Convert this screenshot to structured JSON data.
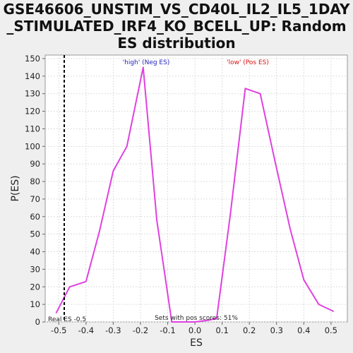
{
  "chart_data": {
    "type": "line",
    "title_lines": [
      "GSE46606_UNSTIM_VS_CD40L_IL2_IL5_1DAY",
      "_STIMULATED_IRF4_KO_BCELL_UP: Random",
      "ES distribution"
    ],
    "xlabel": "ES",
    "ylabel": "P(ES)",
    "xlim": [
      -0.55,
      0.56
    ],
    "ylim": [
      0,
      152
    ],
    "xticks": [
      -0.5,
      -0.4,
      -0.3,
      -0.2,
      -0.1,
      0.0,
      0.1,
      0.2,
      0.3,
      0.4,
      0.5
    ],
    "xtick_labels": [
      "-0.5",
      "-0.4",
      "-0.3",
      "-0.2",
      "-0.1",
      "0.0",
      "0.1",
      "0.2",
      "0.3",
      "0.4",
      "0.5"
    ],
    "yticks": [
      0,
      10,
      20,
      30,
      40,
      50,
      60,
      70,
      80,
      90,
      100,
      110,
      120,
      130,
      140,
      150
    ],
    "grid": true,
    "series": [
      {
        "color": "#e040e0",
        "x": [
          -0.51,
          -0.46,
          -0.4,
          -0.35,
          -0.3,
          -0.25,
          -0.19,
          -0.14,
          -0.085,
          -0.04,
          0.0,
          0.05,
          0.08,
          0.13,
          0.185,
          0.24,
          0.295,
          0.35,
          0.4,
          0.455,
          0.51
        ],
        "y": [
          5,
          20,
          23,
          52,
          86,
          100,
          145,
          58,
          0,
          0,
          0,
          1,
          2,
          61,
          133,
          130,
          91,
          53,
          24,
          10,
          6
        ]
      }
    ],
    "vline": {
      "x": -0.48,
      "style": "dashed",
      "color": "#000000"
    },
    "annotations": {
      "high_label": "'high' (Neg ES)",
      "high_color": "#2222bb",
      "low_label": "'low' (Pos ES)",
      "low_color": "#dd1111",
      "real_es": "Real ES -0.5",
      "pos_scores": "Sets with pos scores: 51%"
    }
  }
}
